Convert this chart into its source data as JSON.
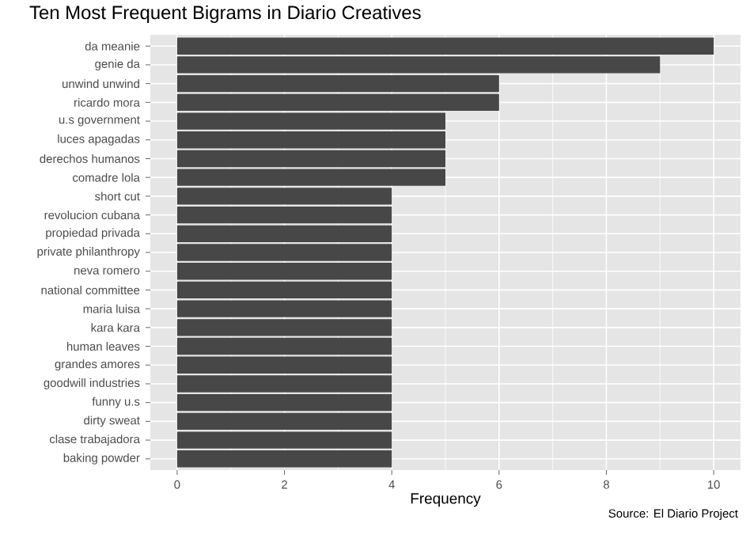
{
  "chart_data": {
    "type": "bar",
    "orientation": "horizontal",
    "title": "Ten Most Frequent Bigrams in Diario Creatives",
    "xlabel": "Frequency",
    "categories": [
      "da meanie",
      "genie da",
      "unwind unwind",
      "ricardo mora",
      "u.s government",
      "luces apagadas",
      "derechos humanos",
      "comadre lola",
      "short cut",
      "revolucion cubana",
      "propiedad privada",
      "private philanthropy",
      "neva romero",
      "national committee",
      "maria luisa",
      "kara kara",
      "human leaves",
      "grandes amores",
      "goodwill industries",
      "funny u.s",
      "dirty sweat",
      "clase trabajadora",
      "baking powder"
    ],
    "values": [
      10,
      9,
      6,
      6,
      5,
      5,
      5,
      5,
      4,
      4,
      4,
      4,
      4,
      4,
      4,
      4,
      4,
      4,
      4,
      4,
      4,
      4,
      4
    ],
    "color": "#474747",
    "xlim": [
      -0.5,
      10.5
    ],
    "xticks": [
      0,
      2,
      4,
      6,
      8,
      10
    ],
    "grid": true,
    "annotations": [
      "Source: El Diario Project"
    ]
  }
}
